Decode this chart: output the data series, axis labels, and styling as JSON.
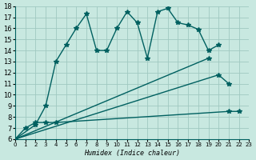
{
  "xlabel": "Humidex (Indice chaleur)",
  "bg_color": "#c8e8e0",
  "grid_color": "#a0c8c0",
  "line_color": "#006060",
  "xlim": [
    0,
    23
  ],
  "ylim": [
    6,
    18
  ],
  "xticks": [
    0,
    1,
    2,
    3,
    4,
    5,
    6,
    7,
    8,
    9,
    10,
    11,
    12,
    13,
    14,
    15,
    16,
    17,
    18,
    19,
    20,
    21,
    22,
    23
  ],
  "yticks": [
    6,
    7,
    8,
    9,
    10,
    11,
    12,
    13,
    14,
    15,
    16,
    17,
    18
  ],
  "series_x": [
    [
      0,
      1,
      2,
      3,
      4,
      21,
      22
    ],
    [
      0,
      20,
      21
    ],
    [
      0,
      19
    ],
    [
      0,
      2,
      3,
      4,
      5,
      6,
      7,
      8,
      9,
      10,
      11,
      12,
      13,
      14,
      15,
      16,
      17,
      18,
      19,
      20
    ]
  ],
  "series_y": [
    [
      6.0,
      7.0,
      7.5,
      7.5,
      7.5,
      8.5,
      8.5
    ],
    [
      6.0,
      11.8,
      11.0
    ],
    [
      6.0,
      13.3
    ],
    [
      6.0,
      7.3,
      9.0,
      13.0,
      14.5,
      16.0,
      17.3,
      14.0,
      14.0,
      16.0,
      17.5,
      16.5,
      13.3,
      17.5,
      17.8,
      16.5,
      16.3,
      15.9,
      14.0,
      14.5
    ]
  ]
}
